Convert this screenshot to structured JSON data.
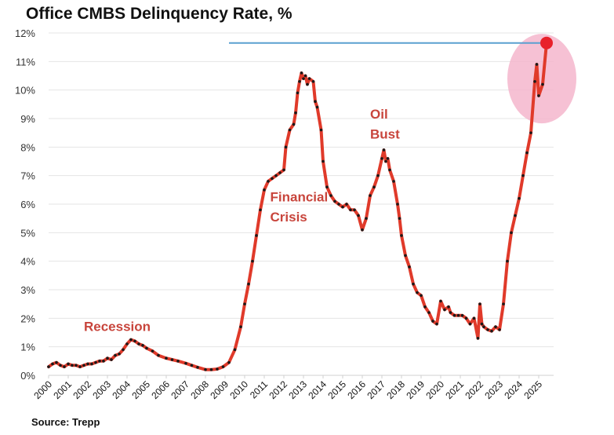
{
  "chart_data": {
    "type": "line",
    "title": "Office CMBS Delinquency Rate, %",
    "source": "Source: Trepp",
    "xlabel": "",
    "ylabel": "",
    "ylim": [
      0,
      12
    ],
    "xlim": [
      2000,
      2025.8
    ],
    "grid": true,
    "yticks": [
      "0%",
      "1%",
      "2%",
      "3%",
      "4%",
      "5%",
      "6%",
      "7%",
      "8%",
      "9%",
      "10%",
      "11%",
      "12%"
    ],
    "xticks": [
      "2000",
      "2001",
      "2002",
      "2003",
      "2004",
      "2005",
      "2006",
      "2007",
      "2008",
      "2009",
      "2010",
      "2011",
      "2012",
      "2013",
      "2014",
      "2015",
      "2016",
      "2017",
      "2018",
      "2019",
      "2020",
      "2021",
      "2022",
      "2023",
      "2024",
      "2025"
    ],
    "annotations": [
      {
        "text": "Recession",
        "x": 2001.8,
        "y": 1.55
      },
      {
        "text": "Financial",
        "x": 2011.3,
        "y": 6.1
      },
      {
        "text": "Crisis",
        "x": 2011.3,
        "y": 5.4
      },
      {
        "text": "Oil",
        "x": 2016.4,
        "y": 9.0
      },
      {
        "text": "Bust",
        "x": 2016.4,
        "y": 8.3
      }
    ],
    "reference_line": {
      "y": 11.65,
      "x_start": 2009.2,
      "x_end": 2025.4,
      "color": "#5aa0d0"
    },
    "highlight_point": {
      "x": 2025.4,
      "y": 11.65,
      "color": "#e8202a"
    },
    "highlight_ellipse_color": "#f4b6cc",
    "line_color": "#e03a2a",
    "marker_color": "#1a1a1a",
    "series": [
      {
        "name": "Office CMBS Delinquency Rate",
        "x": [
          2000.0,
          2000.2,
          2000.4,
          2000.6,
          2000.8,
          2001.0,
          2001.2,
          2001.4,
          2001.6,
          2001.8,
          2002.0,
          2002.2,
          2002.4,
          2002.6,
          2002.8,
          2003.0,
          2003.2,
          2003.4,
          2003.6,
          2003.8,
          2004.0,
          2004.2,
          2004.4,
          2004.6,
          2004.8,
          2005.0,
          2005.3,
          2005.6,
          2006.0,
          2006.3,
          2006.6,
          2007.0,
          2007.3,
          2007.6,
          2008.0,
          2008.3,
          2008.6,
          2008.9,
          2009.2,
          2009.5,
          2009.8,
          2010.0,
          2010.2,
          2010.4,
          2010.6,
          2010.8,
          2011.0,
          2011.2,
          2011.4,
          2011.6,
          2011.8,
          2012.0,
          2012.1,
          2012.3,
          2012.5,
          2012.6,
          2012.7,
          2012.8,
          2012.9,
          2013.0,
          2013.1,
          2013.2,
          2013.3,
          2013.5,
          2013.6,
          2013.7,
          2013.9,
          2014.0,
          2014.2,
          2014.4,
          2014.6,
          2014.8,
          2015.0,
          2015.2,
          2015.4,
          2015.6,
          2015.8,
          2016.0,
          2016.2,
          2016.4,
          2016.6,
          2016.8,
          2017.0,
          2017.1,
          2017.2,
          2017.3,
          2017.4,
          2017.6,
          2017.8,
          2017.9,
          2018.0,
          2018.2,
          2018.4,
          2018.6,
          2018.8,
          2019.0,
          2019.2,
          2019.4,
          2019.6,
          2019.8,
          2020.0,
          2020.2,
          2020.4,
          2020.5,
          2020.7,
          2020.9,
          2021.1,
          2021.3,
          2021.5,
          2021.7,
          2021.9,
          2022.0,
          2022.1,
          2022.2,
          2022.4,
          2022.6,
          2022.8,
          2023.0,
          2023.2,
          2023.4,
          2023.6,
          2023.8,
          2024.0,
          2024.2,
          2024.4,
          2024.6,
          2024.8,
          2024.9,
          2025.0,
          2025.2,
          2025.4
        ],
        "y": [
          0.3,
          0.4,
          0.45,
          0.35,
          0.3,
          0.4,
          0.35,
          0.35,
          0.3,
          0.35,
          0.4,
          0.4,
          0.45,
          0.5,
          0.5,
          0.6,
          0.55,
          0.7,
          0.75,
          0.9,
          1.1,
          1.25,
          1.2,
          1.1,
          1.05,
          0.95,
          0.85,
          0.7,
          0.6,
          0.55,
          0.5,
          0.42,
          0.35,
          0.28,
          0.2,
          0.2,
          0.22,
          0.3,
          0.45,
          0.9,
          1.7,
          2.5,
          3.2,
          4.0,
          4.9,
          5.8,
          6.5,
          6.8,
          6.9,
          7.0,
          7.1,
          7.2,
          8.0,
          8.6,
          8.8,
          9.2,
          9.9,
          10.3,
          10.6,
          10.4,
          10.5,
          10.2,
          10.4,
          10.3,
          9.6,
          9.4,
          8.6,
          7.5,
          6.6,
          6.3,
          6.1,
          6.0,
          5.9,
          6.0,
          5.8,
          5.8,
          5.6,
          5.1,
          5.5,
          6.3,
          6.6,
          7.0,
          7.6,
          7.9,
          7.5,
          7.6,
          7.2,
          6.8,
          6.0,
          5.5,
          4.9,
          4.2,
          3.8,
          3.2,
          2.9,
          2.8,
          2.4,
          2.2,
          1.9,
          1.8,
          2.6,
          2.3,
          2.4,
          2.2,
          2.1,
          2.1,
          2.1,
          2.0,
          1.8,
          2.0,
          1.3,
          2.5,
          1.8,
          1.7,
          1.6,
          1.55,
          1.7,
          1.6,
          2.5,
          4.0,
          5.0,
          5.6,
          6.2,
          7.0,
          7.8,
          8.5,
          10.3,
          10.9,
          9.8,
          10.2,
          11.65
        ]
      }
    ]
  }
}
